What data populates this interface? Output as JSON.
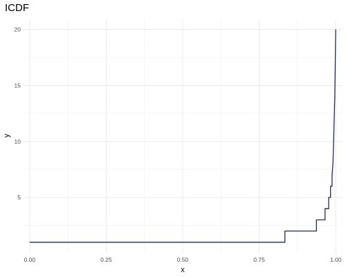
{
  "chart_data": {
    "type": "line",
    "title": "ICDF",
    "xlabel": "x",
    "ylabel": "y",
    "xlim": [
      -0.02,
      1.02
    ],
    "ylim": [
      0,
      20.9
    ],
    "x_ticks": [
      0.0,
      0.25,
      0.5,
      0.75,
      1.0
    ],
    "x_tick_labels": [
      "0.00",
      "0.25",
      "0.50",
      "0.75",
      "1.00"
    ],
    "y_ticks": [
      5,
      10,
      15,
      20
    ],
    "y_tick_labels": [
      "5",
      "10",
      "15",
      "20"
    ],
    "grid": true,
    "line_color": "#1a2a6c",
    "series": [
      {
        "step": "pre",
        "x": [
          0.0,
          0.834,
          0.834,
          0.937,
          0.937,
          0.965,
          0.965,
          0.977,
          0.977,
          0.983,
          0.983,
          0.988,
          0.988,
          0.991,
          0.992,
          0.993,
          0.994,
          0.995,
          0.996,
          0.997,
          0.998,
          0.999,
          1.0
        ],
        "y": [
          1,
          1,
          2,
          2,
          3,
          3,
          4,
          4,
          5,
          5,
          6,
          6,
          7,
          8,
          9,
          10,
          11,
          12,
          13,
          14,
          16,
          18,
          20
        ]
      }
    ]
  }
}
